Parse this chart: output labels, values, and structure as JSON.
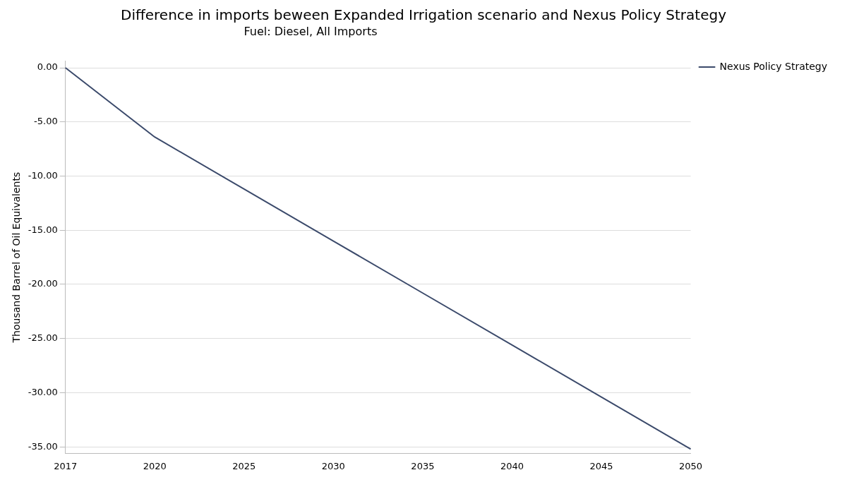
{
  "chart_data": {
    "type": "line",
    "title": "Difference in imports beween Expanded Irrigation scenario and Nexus Policy Strategy",
    "subtitle": "Fuel: Diesel, All Imports",
    "ylabel": "Thousand Barrel of Oil Equivalents",
    "categories": [
      "2017",
      "2020",
      "2025",
      "2030",
      "2035",
      "2040",
      "2045",
      "2050"
    ],
    "series": [
      {
        "name": "Nexus Policy Strategy",
        "color": "#3b4a6b",
        "values": [
          0,
          -6.4,
          -11.2,
          -16.0,
          -20.8,
          -25.6,
          -30.4,
          -35.2
        ]
      }
    ],
    "ylim": [
      -35.6,
      0.6
    ],
    "yticks": [
      {
        "value": 0,
        "label": "0.00"
      },
      {
        "value": -5,
        "label": "-5.00"
      },
      {
        "value": -10,
        "label": "-10.00"
      },
      {
        "value": -15,
        "label": "-15.00"
      },
      {
        "value": -20,
        "label": "-20.00"
      },
      {
        "value": -25,
        "label": "-25.00"
      },
      {
        "value": -30,
        "label": "-30.00"
      },
      {
        "value": -35,
        "label": "-35.00"
      }
    ],
    "grid": "y",
    "legend": "top right",
    "marker": "none",
    "line_style": "solid"
  }
}
